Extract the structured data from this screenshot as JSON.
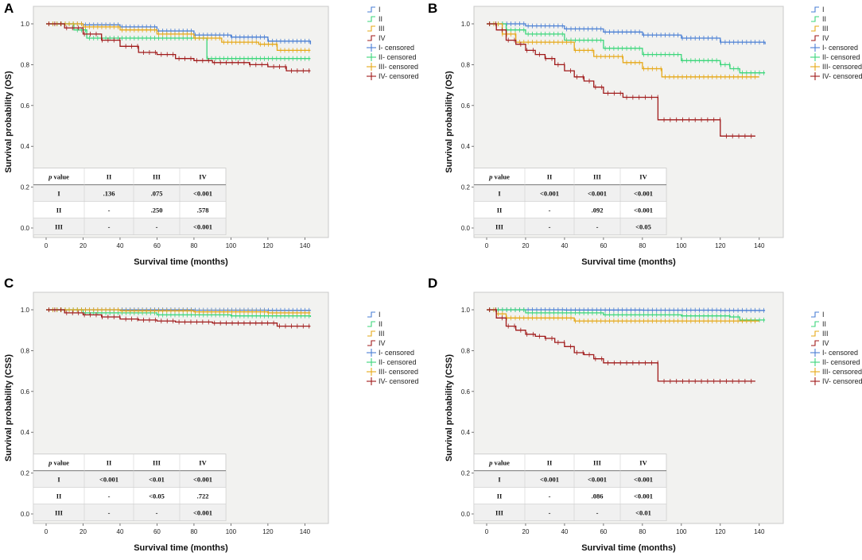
{
  "chart_data": [
    {
      "panel": "A",
      "type": "line",
      "xlabel": "Survival time (months)",
      "ylabel": "Survival probability (OS)",
      "xlim": [
        0,
        145
      ],
      "ylim": [
        0,
        1.0
      ],
      "xticks": [
        "0",
        "20",
        "40",
        "60",
        "80",
        "100",
        "120",
        "140"
      ],
      "yticks": [
        "0.0",
        "0.2",
        "0.4",
        "0.6",
        "0.8",
        "1.0"
      ],
      "legend": [
        "I",
        "II",
        "III",
        "IV",
        "I- censored",
        "II- censored",
        "III- censored",
        "IV- censored"
      ],
      "series": [
        {
          "name": "I",
          "color": "#4a7fd4",
          "x": [
            0,
            20,
            40,
            60,
            80,
            100,
            120,
            143
          ],
          "y": [
            1.0,
            0.995,
            0.985,
            0.965,
            0.945,
            0.935,
            0.915,
            0.9
          ]
        },
        {
          "name": "II",
          "color": "#3bd67a",
          "x": [
            0,
            15,
            22,
            40,
            60,
            85,
            87,
            143
          ],
          "y": [
            1.0,
            0.97,
            0.93,
            0.93,
            0.93,
            0.93,
            0.83,
            0.83
          ]
        },
        {
          "name": "III",
          "color": "#e6a817",
          "x": [
            0,
            20,
            40,
            60,
            80,
            95,
            115,
            125,
            143
          ],
          "y": [
            1.0,
            0.985,
            0.97,
            0.95,
            0.93,
            0.91,
            0.9,
            0.87,
            0.87
          ]
        },
        {
          "name": "IV",
          "color": "#a01a1a",
          "x": [
            0,
            10,
            20,
            30,
            40,
            50,
            60,
            70,
            80,
            90,
            100,
            110,
            120,
            130,
            143
          ],
          "y": [
            1.0,
            0.98,
            0.95,
            0.92,
            0.89,
            0.86,
            0.85,
            0.83,
            0.82,
            0.81,
            0.81,
            0.8,
            0.79,
            0.77,
            0.77
          ]
        }
      ],
      "table": {
        "header": [
          "p value",
          "II",
          "III",
          "IV"
        ],
        "rows": [
          [
            "I",
            ".136",
            ".075",
            "<0.001"
          ],
          [
            "II",
            "-",
            ".250",
            ".578"
          ],
          [
            "III",
            "-",
            "-",
            "<0.001"
          ]
        ]
      }
    },
    {
      "panel": "B",
      "type": "line",
      "xlabel": "Survival time (months)",
      "ylabel": "Survival probability (OS)",
      "xlim": [
        0,
        145
      ],
      "ylim": [
        0,
        1.0
      ],
      "xticks": [
        "0",
        "20",
        "40",
        "60",
        "80",
        "100",
        "120",
        "140"
      ],
      "yticks": [
        "0.0",
        "0.2",
        "0.4",
        "0.6",
        "0.8",
        "1.0"
      ],
      "legend": [
        "I",
        "II",
        "III",
        "IV",
        "I- censored",
        "II- censored",
        "III- censored",
        "IV- censored"
      ],
      "series": [
        {
          "name": "I",
          "color": "#4a7fd4",
          "x": [
            0,
            20,
            40,
            60,
            80,
            100,
            120,
            143
          ],
          "y": [
            1.0,
            0.99,
            0.975,
            0.96,
            0.945,
            0.93,
            0.91,
            0.9
          ]
        },
        {
          "name": "II",
          "color": "#3bd67a",
          "x": [
            0,
            10,
            20,
            40,
            60,
            80,
            100,
            120,
            125,
            130,
            143
          ],
          "y": [
            1.0,
            0.97,
            0.95,
            0.92,
            0.88,
            0.85,
            0.82,
            0.8,
            0.78,
            0.76,
            0.76
          ]
        },
        {
          "name": "III",
          "color": "#e6a817",
          "x": [
            0,
            8,
            15,
            40,
            45,
            55,
            70,
            80,
            90,
            140
          ],
          "y": [
            1.0,
            0.95,
            0.91,
            0.91,
            0.87,
            0.84,
            0.81,
            0.78,
            0.74,
            0.74
          ]
        },
        {
          "name": "IV",
          "color": "#a01a1a",
          "x": [
            0,
            5,
            10,
            15,
            20,
            25,
            30,
            35,
            40,
            45,
            50,
            55,
            60,
            70,
            85,
            88,
            118,
            120,
            138
          ],
          "y": [
            1.0,
            0.97,
            0.92,
            0.9,
            0.87,
            0.85,
            0.83,
            0.8,
            0.77,
            0.74,
            0.72,
            0.69,
            0.66,
            0.64,
            0.64,
            0.53,
            0.53,
            0.45,
            0.45
          ]
        }
      ],
      "table": {
        "header": [
          "p value",
          "II",
          "III",
          "IV"
        ],
        "rows": [
          [
            "I",
            "<0.001",
            "<0.001",
            "<0.001"
          ],
          [
            "II",
            "-",
            ".092",
            "<0.001"
          ],
          [
            "III",
            "-",
            "-",
            "<0.05"
          ]
        ]
      }
    },
    {
      "panel": "C",
      "type": "line",
      "xlabel": "Survival time (months)",
      "ylabel": "Survival probability (CSS)",
      "xlim": [
        0,
        145
      ],
      "ylim": [
        0,
        1.0
      ],
      "xticks": [
        "0",
        "20",
        "40",
        "60",
        "80",
        "100",
        "120",
        "140"
      ],
      "yticks": [
        "0.0",
        "0.2",
        "0.4",
        "0.6",
        "0.8",
        "1.0"
      ],
      "legend": [
        "I",
        "II",
        "III",
        "IV",
        "I- censored",
        "II- censored",
        "III- censored",
        "IV- censored"
      ],
      "series": [
        {
          "name": "I",
          "color": "#4a7fd4",
          "x": [
            0,
            40,
            80,
            120,
            143
          ],
          "y": [
            1.0,
            1.0,
            0.998,
            0.997,
            0.996
          ]
        },
        {
          "name": "II",
          "color": "#3bd67a",
          "x": [
            0,
            20,
            60,
            100,
            143
          ],
          "y": [
            1.0,
            0.985,
            0.975,
            0.97,
            0.965
          ]
        },
        {
          "name": "III",
          "color": "#e6a817",
          "x": [
            0,
            40,
            80,
            120,
            143
          ],
          "y": [
            1.0,
            0.995,
            0.99,
            0.985,
            0.985
          ]
        },
        {
          "name": "IV",
          "color": "#a01a1a",
          "x": [
            0,
            10,
            20,
            30,
            40,
            50,
            60,
            70,
            80,
            90,
            110,
            125,
            143
          ],
          "y": [
            1.0,
            0.985,
            0.975,
            0.965,
            0.955,
            0.95,
            0.945,
            0.94,
            0.94,
            0.935,
            0.935,
            0.92,
            0.92
          ]
        }
      ],
      "table": {
        "header": [
          "p value",
          "II",
          "III",
          "IV"
        ],
        "rows": [
          [
            "I",
            "<0.001",
            "<0.01",
            "<0.001"
          ],
          [
            "II",
            "-",
            "<0.05",
            ".722"
          ],
          [
            "III",
            "-",
            "-",
            "<0.001"
          ]
        ]
      }
    },
    {
      "panel": "D",
      "type": "line",
      "xlabel": "Survival time (months)",
      "ylabel": "Survival probability (CSS)",
      "xlim": [
        0,
        145
      ],
      "ylim": [
        0,
        1.0
      ],
      "xticks": [
        "0",
        "20",
        "40",
        "60",
        "80",
        "100",
        "120",
        "140"
      ],
      "yticks": [
        "0.0",
        "0.2",
        "0.4",
        "0.6",
        "0.8",
        "1.0"
      ],
      "legend": [
        "I",
        "II",
        "III",
        "IV",
        "I- censored",
        "II- censored",
        "III- censored",
        "IV- censored"
      ],
      "series": [
        {
          "name": "I",
          "color": "#4a7fd4",
          "x": [
            0,
            40,
            80,
            120,
            143
          ],
          "y": [
            1.0,
            0.999,
            0.998,
            0.997,
            0.997
          ]
        },
        {
          "name": "II",
          "color": "#3bd67a",
          "x": [
            0,
            20,
            60,
            100,
            125,
            130,
            143
          ],
          "y": [
            1.0,
            0.985,
            0.975,
            0.97,
            0.965,
            0.95,
            0.95
          ]
        },
        {
          "name": "III",
          "color": "#e6a817",
          "x": [
            0,
            5,
            10,
            40,
            45,
            140
          ],
          "y": [
            1.0,
            0.98,
            0.96,
            0.96,
            0.945,
            0.945
          ]
        },
        {
          "name": "IV",
          "color": "#a01a1a",
          "x": [
            0,
            5,
            10,
            15,
            20,
            25,
            30,
            35,
            40,
            45,
            50,
            55,
            60,
            70,
            85,
            88,
            138
          ],
          "y": [
            1.0,
            0.96,
            0.92,
            0.9,
            0.88,
            0.87,
            0.86,
            0.84,
            0.82,
            0.79,
            0.78,
            0.76,
            0.74,
            0.74,
            0.74,
            0.65,
            0.65
          ]
        }
      ],
      "table": {
        "header": [
          "p value",
          "II",
          "III",
          "IV"
        ],
        "rows": [
          [
            "I",
            "<0.001",
            "<0.001",
            "<0.001"
          ],
          [
            "II",
            "-",
            ".086",
            "<0.001"
          ],
          [
            "III",
            "-",
            "-",
            "<0.01"
          ]
        ]
      }
    }
  ]
}
